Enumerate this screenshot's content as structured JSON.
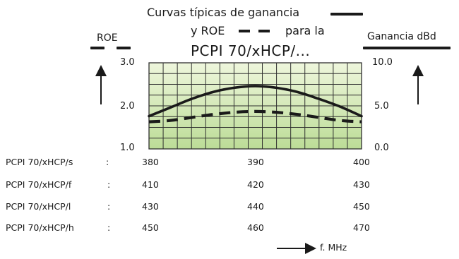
{
  "chart_data": {
    "type": "line",
    "title": "Curvas típicas de ganancia",
    "title_line2_prefix": "y ROE",
    "title_line2_suffix": "para la",
    "subtitle": "PCPI 70/xHCP/...",
    "left_axis": {
      "label": "ROE",
      "ticks": [
        "3.0",
        "2.0",
        "1.0"
      ],
      "range": [
        1.0,
        3.0
      ]
    },
    "right_axis": {
      "label": "Ganancia dBd",
      "ticks": [
        "10.0",
        "5.0",
        "0.0"
      ],
      "range": [
        0.0,
        10.0
      ]
    },
    "x_axis_label": "f. MHz",
    "grid": true,
    "series": [
      {
        "name": "ganancia",
        "style": "solid",
        "axis": "right",
        "x_rel": [
          0.0,
          0.1,
          0.2,
          0.3,
          0.4,
          0.5,
          0.6,
          0.7,
          0.8,
          0.9,
          1.0
        ],
        "values": [
          3.8,
          4.8,
          5.8,
          6.6,
          7.1,
          7.3,
          7.1,
          6.6,
          5.8,
          4.9,
          3.8
        ]
      },
      {
        "name": "ROE",
        "style": "dashed",
        "axis": "left",
        "x_rel": [
          0.0,
          0.1,
          0.2,
          0.3,
          0.4,
          0.5,
          0.6,
          0.7,
          0.8,
          0.9,
          1.0
        ],
        "values": [
          1.63,
          1.66,
          1.73,
          1.8,
          1.85,
          1.87,
          1.85,
          1.8,
          1.73,
          1.66,
          1.63
        ]
      }
    ],
    "frequency_table": [
      {
        "label": "PCPI 70/xHCP/s",
        "sep": ":",
        "f": [
          "380",
          "390",
          "400"
        ]
      },
      {
        "label": "PCPI 70/xHCP/f",
        "sep": ":",
        "f": [
          "410",
          "420",
          "430"
        ]
      },
      {
        "label": "PCPI 70/xHCP/l",
        "sep": ":",
        "f": [
          "430",
          "440",
          "450"
        ]
      },
      {
        "label": "PCPI 70/xHCP/h",
        "sep": ":",
        "f": [
          "450",
          "460",
          "470"
        ]
      }
    ],
    "colors": {
      "grid_fill_light": "#eef6dc",
      "grid_fill_dark": "#bcdc97",
      "grid_line": "#2f2f2f",
      "curve": "#1a1a1a"
    }
  }
}
